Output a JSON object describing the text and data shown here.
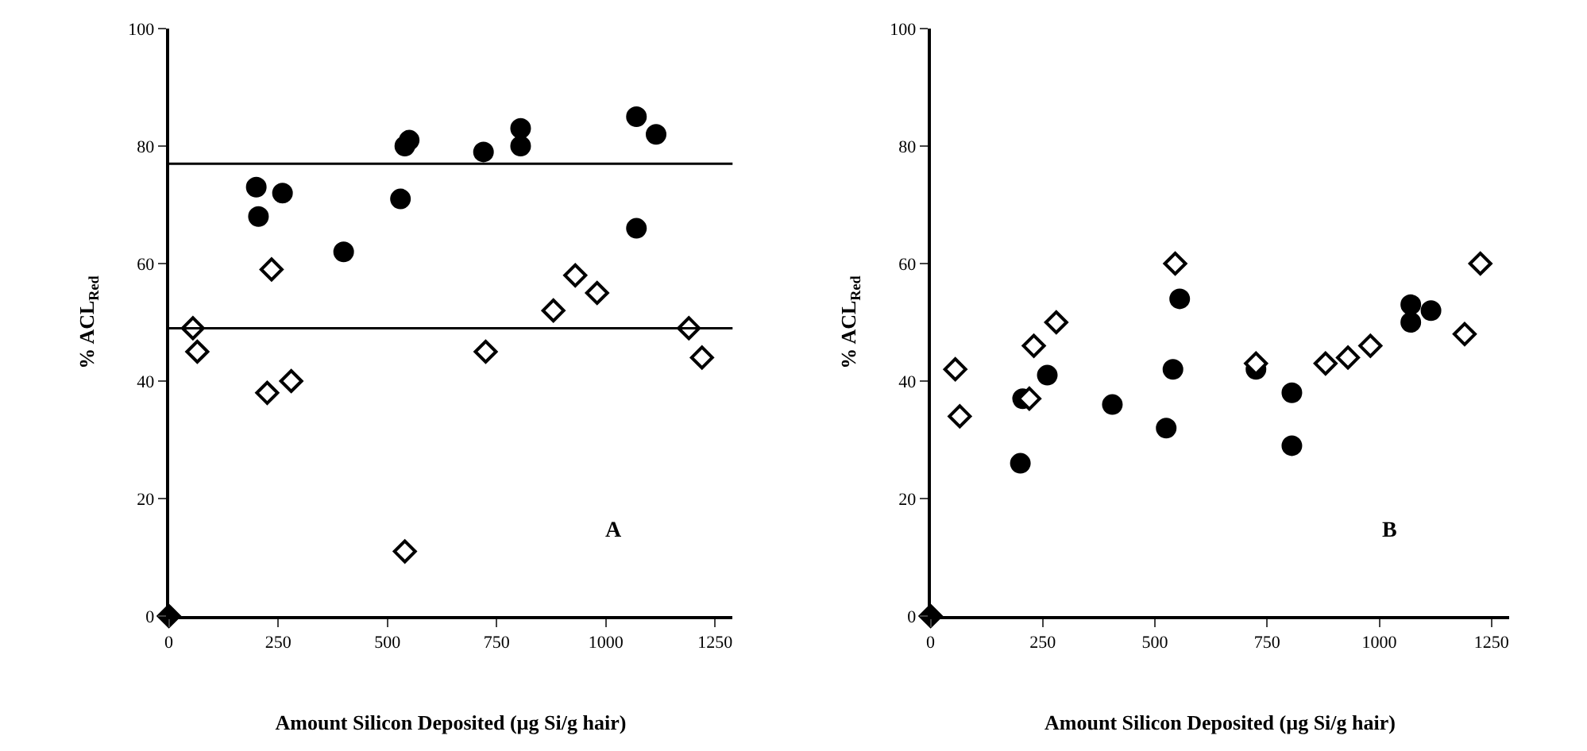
{
  "chart_data": [
    {
      "type": "scatter",
      "xlabel": "Amount Silicon Deposited (µg Si/g hair)",
      "ylabel": "% ACL$_{Red}$",
      "xlim": [
        0,
        1290
      ],
      "xticks": [
        0,
        250,
        500,
        750,
        1000,
        1250
      ],
      "ylim": [
        0,
        100
      ],
      "yticks": [
        0,
        20,
        40,
        60,
        80,
        100
      ],
      "annotations": [
        "A"
      ],
      "ref_lines": [
        {
          "axis": "y",
          "value": 77,
          "color": "#000000"
        },
        {
          "axis": "y",
          "value": 49,
          "color": "#000000"
        }
      ],
      "series": [
        {
          "marker": "circle",
          "color": "#000000",
          "x": [
            200,
            205,
            260,
            400,
            530,
            540,
            550,
            720,
            805,
            805,
            1070,
            1070,
            1115
          ],
          "values": [
            73,
            68,
            72,
            62,
            71,
            80,
            81,
            79,
            83,
            80,
            85,
            66,
            82
          ]
        },
        {
          "marker": "diamond",
          "color": "#ffffff",
          "x": [
            55,
            65,
            225,
            235,
            280,
            540,
            725,
            880,
            930,
            980,
            1190,
            1220
          ],
          "values": [
            49,
            45,
            38,
            59,
            40,
            11,
            45,
            52,
            58,
            55,
            49,
            44
          ]
        },
        {
          "marker": "diamond",
          "color": "#000000",
          "x": [
            0
          ],
          "values": [
            0
          ]
        }
      ]
    },
    {
      "type": "scatter",
      "xlabel": "Amount Silicon Deposited (µg Si/g hair)",
      "ylabel": "% ACL$_{Red}$",
      "xlim": [
        0,
        1290
      ],
      "xticks": [
        0,
        250,
        500,
        750,
        1000,
        1250
      ],
      "ylim": [
        0,
        100
      ],
      "yticks": [
        0,
        20,
        40,
        60,
        80,
        100
      ],
      "annotations": [
        "B"
      ],
      "series": [
        {
          "marker": "circle",
          "color": "#000000",
          "x": [
            200,
            205,
            260,
            405,
            525,
            540,
            555,
            725,
            805,
            805,
            1070,
            1070,
            1115
          ],
          "values": [
            26,
            37,
            41,
            36,
            32,
            42,
            54,
            42,
            38,
            29,
            53,
            50,
            52
          ]
        },
        {
          "marker": "diamond",
          "color": "#ffffff",
          "x": [
            55,
            65,
            220,
            230,
            280,
            545,
            725,
            880,
            930,
            980,
            1190,
            1225
          ],
          "values": [
            42,
            34,
            37,
            46,
            50,
            60,
            43,
            43,
            44,
            46,
            48,
            60
          ]
        },
        {
          "marker": "diamond",
          "color": "#000000",
          "x": [
            0
          ],
          "values": [
            0
          ]
        }
      ]
    }
  ]
}
